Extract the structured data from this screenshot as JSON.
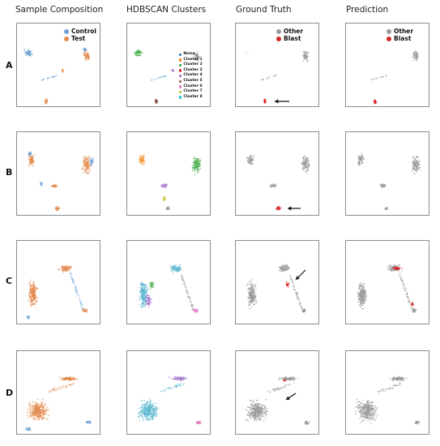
{
  "columns": [
    {
      "title": "Sample Composition"
    },
    {
      "title": "HDBSCAN Clusters"
    },
    {
      "title": "Ground Truth"
    },
    {
      "title": "Prediction"
    }
  ],
  "rows": [
    "A",
    "B",
    "C",
    "D"
  ],
  "legends": {
    "sample": [
      {
        "label": "Control",
        "color": "#6fa3d6"
      },
      {
        "label": "Test",
        "color": "#e38b4f"
      }
    ],
    "clusters": [
      {
        "label": "Noise",
        "color": "#1f77b4"
      },
      {
        "label": "Cluster 1",
        "color": "#ff7f0e"
      },
      {
        "label": "Cluster 2",
        "color": "#2ca02c"
      },
      {
        "label": "Cluster 3",
        "color": "#d62728"
      },
      {
        "label": "Cluster 4",
        "color": "#9467bd"
      },
      {
        "label": "Cluster 5",
        "color": "#8c564b"
      },
      {
        "label": "Cluster 6",
        "color": "#e377c2"
      },
      {
        "label": "Cluster 7",
        "color": "#bcbd22"
      },
      {
        "label": "Cluster 8",
        "color": "#17becf"
      }
    ],
    "truth": [
      {
        "label": "Other",
        "color": "#9a9a9a"
      },
      {
        "label": "Blast",
        "color": "#d62728"
      }
    ]
  },
  "colors": {
    "control": "#6fa3d6",
    "test": "#e38b4f",
    "other": "#9a9a9a",
    "blast": "#d62728",
    "green": "#4caf50",
    "purple": "#a779d0",
    "pink": "#e377c2",
    "cyan": "#5bb7cf",
    "brown": "#8c564b",
    "olive": "#bcbd22",
    "arrow": "#111111"
  }
}
